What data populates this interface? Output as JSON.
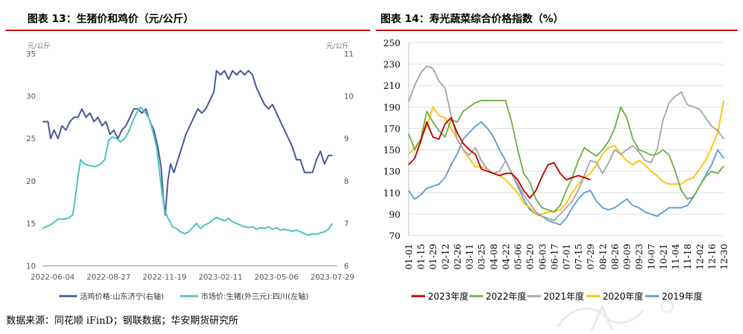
{
  "left": {
    "title": "图表 13：生猪价和鸡价（元/公斤）"
  },
  "right": {
    "title": "图表 14：寿光蔬菜综合价格指数（%）"
  },
  "source": "数据来源：同花顺 iFinD；钢联数据；华安期货研究所",
  "chart_data": [
    {
      "type": "line",
      "y_unit_left": "元/公斤",
      "y_unit_right": "元/公斤",
      "x_ticks": [
        "2022-06-04",
        "2022-08-27",
        "2022-11-19",
        "2023-02-11",
        "2023-05-06",
        "2023-07-29"
      ],
      "x_range": [
        "2022-05-20",
        "2023-08-05"
      ],
      "ylim_left": [
        10,
        35
      ],
      "yticks_left": [
        10,
        15,
        20,
        25,
        30,
        35
      ],
      "ylim_right": [
        6,
        11
      ],
      "yticks_right": [
        6,
        7,
        8,
        9,
        10,
        11
      ],
      "grid": false,
      "legend_position": "bottom",
      "series": [
        {
          "name": "活鸡价格:山东济宁(右轴)",
          "axis": "right",
          "color": "#4a5c9c",
          "points": [
            [
              "2022-05-20",
              9.4
            ],
            [
              "2022-05-28",
              9.4
            ],
            [
              "2022-06-01",
              9.0
            ],
            [
              "2022-06-06",
              9.2
            ],
            [
              "2022-06-12",
              9.0
            ],
            [
              "2022-06-18",
              9.3
            ],
            [
              "2022-06-24",
              9.2
            ],
            [
              "2022-06-30",
              9.4
            ],
            [
              "2022-07-06",
              9.5
            ],
            [
              "2022-07-12",
              9.5
            ],
            [
              "2022-07-18",
              9.7
            ],
            [
              "2022-07-24",
              9.5
            ],
            [
              "2022-07-30",
              9.6
            ],
            [
              "2022-08-05",
              9.4
            ],
            [
              "2022-08-11",
              9.5
            ],
            [
              "2022-08-17",
              9.3
            ],
            [
              "2022-08-23",
              9.4
            ],
            [
              "2022-08-29",
              9.1
            ],
            [
              "2022-09-04",
              9.2
            ],
            [
              "2022-09-10",
              9.0
            ],
            [
              "2022-09-16",
              9.2
            ],
            [
              "2022-09-22",
              9.3
            ],
            [
              "2022-09-28",
              9.5
            ],
            [
              "2022-10-04",
              9.7
            ],
            [
              "2022-10-10",
              9.7
            ],
            [
              "2022-10-16",
              9.6
            ],
            [
              "2022-10-22",
              9.7
            ],
            [
              "2022-10-28",
              9.4
            ],
            [
              "2022-11-03",
              9.2
            ],
            [
              "2022-11-09",
              8.8
            ],
            [
              "2022-11-14",
              8.3
            ],
            [
              "2022-11-17",
              7.6
            ],
            [
              "2022-11-20",
              7.2
            ],
            [
              "2022-11-24",
              8.0
            ],
            [
              "2022-11-28",
              8.4
            ],
            [
              "2022-12-03",
              8.2
            ],
            [
              "2022-12-09",
              8.5
            ],
            [
              "2022-12-15",
              8.8
            ],
            [
              "2022-12-21",
              9.1
            ],
            [
              "2022-12-27",
              9.3
            ],
            [
              "2023-01-02",
              9.5
            ],
            [
              "2023-01-08",
              9.7
            ],
            [
              "2023-01-14",
              9.6
            ],
            [
              "2023-01-20",
              9.7
            ],
            [
              "2023-01-26",
              9.9
            ],
            [
              "2023-02-01",
              10.1
            ],
            [
              "2023-02-05",
              10.6
            ],
            [
              "2023-02-11",
              10.5
            ],
            [
              "2023-02-17",
              10.6
            ],
            [
              "2023-02-23",
              10.4
            ],
            [
              "2023-03-01",
              10.6
            ],
            [
              "2023-03-07",
              10.5
            ],
            [
              "2023-03-13",
              10.6
            ],
            [
              "2023-03-19",
              10.5
            ],
            [
              "2023-03-25",
              10.6
            ],
            [
              "2023-03-31",
              10.5
            ],
            [
              "2023-04-06",
              10.2
            ],
            [
              "2023-04-12",
              10.0
            ],
            [
              "2023-04-18",
              9.8
            ],
            [
              "2023-04-24",
              9.7
            ],
            [
              "2023-04-30",
              9.8
            ],
            [
              "2023-05-06",
              9.6
            ],
            [
              "2023-05-12",
              9.4
            ],
            [
              "2023-05-18",
              9.2
            ],
            [
              "2023-05-24",
              9.0
            ],
            [
              "2023-05-30",
              8.8
            ],
            [
              "2023-06-05",
              8.5
            ],
            [
              "2023-06-11",
              8.5
            ],
            [
              "2023-06-17",
              8.2
            ],
            [
              "2023-06-23",
              8.2
            ],
            [
              "2023-06-29",
              8.2
            ],
            [
              "2023-07-05",
              8.5
            ],
            [
              "2023-07-11",
              8.7
            ],
            [
              "2023-07-17",
              8.4
            ],
            [
              "2023-07-23",
              8.6
            ],
            [
              "2023-07-29",
              8.6
            ]
          ]
        },
        {
          "name": "市场价:生猪(外三元):四川(左轴)",
          "axis": "left",
          "color": "#4fc3c0",
          "points": [
            [
              "2022-05-20",
              14.4
            ],
            [
              "2022-05-28",
              14.7
            ],
            [
              "2022-06-04",
              15.0
            ],
            [
              "2022-06-12",
              15.5
            ],
            [
              "2022-06-20",
              15.5
            ],
            [
              "2022-06-28",
              15.6
            ],
            [
              "2022-07-04",
              16.0
            ],
            [
              "2022-07-08",
              18.0
            ],
            [
              "2022-07-12",
              20.5
            ],
            [
              "2022-07-16",
              22.5
            ],
            [
              "2022-07-22",
              22.0
            ],
            [
              "2022-07-30",
              21.8
            ],
            [
              "2022-08-07",
              21.7
            ],
            [
              "2022-08-15",
              22.0
            ],
            [
              "2022-08-21",
              22.5
            ],
            [
              "2022-08-27",
              24.8
            ],
            [
              "2022-09-02",
              25.2
            ],
            [
              "2022-09-08",
              25.0
            ],
            [
              "2022-09-14",
              24.6
            ],
            [
              "2022-09-20",
              25.0
            ],
            [
              "2022-09-26",
              25.8
            ],
            [
              "2022-10-02",
              27.0
            ],
            [
              "2022-10-08",
              28.0
            ],
            [
              "2022-10-14",
              28.7
            ],
            [
              "2022-10-20",
              28.2
            ],
            [
              "2022-10-26",
              27.5
            ],
            [
              "2022-11-01",
              26.0
            ],
            [
              "2022-11-07",
              24.0
            ],
            [
              "2022-11-13",
              20.0
            ],
            [
              "2022-11-19",
              16.5
            ],
            [
              "2022-11-25",
              15.5
            ],
            [
              "2022-12-01",
              14.6
            ],
            [
              "2022-12-07",
              14.4
            ],
            [
              "2022-12-13",
              14.0
            ],
            [
              "2022-12-19",
              13.8
            ],
            [
              "2022-12-25",
              14.0
            ],
            [
              "2022-12-31",
              14.5
            ],
            [
              "2023-01-06",
              15.0
            ],
            [
              "2023-01-12",
              14.4
            ],
            [
              "2023-01-18",
              14.8
            ],
            [
              "2023-01-24",
              15.0
            ],
            [
              "2023-01-30",
              15.4
            ],
            [
              "2023-02-05",
              15.7
            ],
            [
              "2023-02-11",
              15.5
            ],
            [
              "2023-02-17",
              15.3
            ],
            [
              "2023-02-23",
              15.6
            ],
            [
              "2023-03-01",
              15.2
            ],
            [
              "2023-03-07",
              15.0
            ],
            [
              "2023-03-13",
              14.8
            ],
            [
              "2023-03-19",
              14.6
            ],
            [
              "2023-03-25",
              14.5
            ],
            [
              "2023-03-31",
              14.6
            ],
            [
              "2023-04-06",
              14.3
            ],
            [
              "2023-04-12",
              14.5
            ],
            [
              "2023-04-18",
              14.4
            ],
            [
              "2023-04-24",
              14.6
            ],
            [
              "2023-04-30",
              14.3
            ],
            [
              "2023-05-06",
              14.5
            ],
            [
              "2023-05-12",
              14.2
            ],
            [
              "2023-05-18",
              14.3
            ],
            [
              "2023-05-24",
              14.2
            ],
            [
              "2023-05-30",
              14.1
            ],
            [
              "2023-06-05",
              14.2
            ],
            [
              "2023-06-11",
              14.0
            ],
            [
              "2023-06-17",
              13.8
            ],
            [
              "2023-06-23",
              13.6
            ],
            [
              "2023-06-29",
              13.8
            ],
            [
              "2023-07-05",
              13.7
            ],
            [
              "2023-07-11",
              13.9
            ],
            [
              "2023-07-17",
              14.0
            ],
            [
              "2023-07-23",
              14.3
            ],
            [
              "2023-07-29",
              15.0
            ]
          ]
        }
      ]
    },
    {
      "type": "line",
      "categories": [
        "01-01",
        "01-08",
        "01-15",
        "01-22",
        "01-29",
        "02-05",
        "02-12",
        "02-19",
        "02-26",
        "03-04",
        "03-11",
        "03-18",
        "03-25",
        "04-01",
        "04-08",
        "04-15",
        "04-22",
        "04-29",
        "05-06",
        "05-13",
        "05-20",
        "05-27",
        "06-03",
        "06-10",
        "06-17",
        "06-24",
        "07-01",
        "07-08",
        "07-15",
        "07-22",
        "07-29",
        "08-05",
        "08-12",
        "08-19",
        "08-26",
        "09-02",
        "09-09",
        "09-16",
        "09-23",
        "09-30",
        "10-07",
        "10-14",
        "10-21",
        "10-28",
        "11-04",
        "11-11",
        "11-18",
        "11-25",
        "12-02",
        "12-09",
        "12-16",
        "12-23",
        "12-30"
      ],
      "ylim": [
        70,
        250
      ],
      "yticks": [
        70,
        90,
        110,
        130,
        150,
        170,
        190,
        210,
        230,
        250
      ],
      "grid": true,
      "legend_position": "bottom",
      "series": [
        {
          "name": "2023年度",
          "color": "#c00000",
          "values": [
            136,
            142,
            158,
            176,
            162,
            160,
            174,
            180,
            166,
            156,
            150,
            146,
            132,
            130,
            128,
            126,
            128,
            128,
            122,
            112,
            105,
            112,
            125,
            136,
            138,
            128,
            122,
            124,
            126,
            124,
            122,
            null,
            null,
            null,
            null,
            null,
            null,
            null,
            null,
            null,
            null,
            null,
            null,
            null,
            null,
            null,
            null,
            null,
            null,
            null,
            null,
            null,
            null
          ]
        },
        {
          "name": "2022年度",
          "color": "#70ad47",
          "values": [
            165,
            150,
            160,
            186,
            176,
            168,
            162,
            178,
            176,
            186,
            190,
            194,
            196,
            196,
            196,
            196,
            196,
            176,
            150,
            128,
            120,
            104,
            96,
            94,
            92,
            98,
            112,
            124,
            140,
            152,
            148,
            144,
            150,
            158,
            170,
            190,
            180,
            160,
            150,
            148,
            145,
            146,
            150,
            145,
            130,
            112,
            104,
            106,
            116,
            125,
            130,
            128,
            135
          ]
        },
        {
          "name": "2021年度",
          "color": "#a6a6a6",
          "values": [
            195,
            210,
            222,
            228,
            226,
            214,
            208,
            182,
            160,
            150,
            145,
            152,
            140,
            132,
            128,
            130,
            140,
            128,
            118,
            108,
            100,
            92,
            88,
            86,
            84,
            90,
            96,
            102,
            112,
            126,
            140,
            138,
            128,
            138,
            150,
            146,
            150,
            154,
            148,
            140,
            138,
            150,
            178,
            194,
            200,
            204,
            192,
            190,
            188,
            180,
            172,
            168,
            160
          ]
        },
        {
          "name": "2020年度",
          "color": "#ffc000",
          "values": [
            146,
            152,
            160,
            172,
            190,
            182,
            180,
            170,
            160,
            150,
            142,
            134,
            134,
            132,
            128,
            126,
            122,
            116,
            110,
            100,
            96,
            90,
            90,
            92,
            92,
            94,
            100,
            110,
            118,
            124,
            128,
            136,
            146,
            152,
            154,
            146,
            140,
            136,
            140,
            136,
            130,
            126,
            120,
            118,
            118,
            118,
            122,
            124,
            132,
            140,
            152,
            166,
            196
          ]
        },
        {
          "name": "2019年度",
          "color": "#5b9bd5",
          "values": [
            112,
            104,
            108,
            114,
            116,
            118,
            124,
            136,
            146,
            160,
            166,
            172,
            176,
            170,
            162,
            150,
            140,
            128,
            116,
            104,
            94,
            90,
            88,
            84,
            82,
            80,
            86,
            96,
            104,
            110,
            112,
            102,
            96,
            94,
            96,
            100,
            104,
            98,
            96,
            92,
            90,
            88,
            92,
            96,
            96,
            96,
            98,
            106,
            116,
            126,
            136,
            150,
            142
          ]
        }
      ]
    }
  ]
}
